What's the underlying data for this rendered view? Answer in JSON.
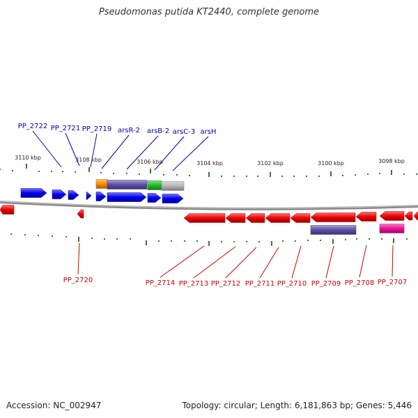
{
  "title": "Pseudomonas putida KT2440, complete genome",
  "footer": {
    "accession": "Accession: NC_002947",
    "summary": "Topology: circular; Length: 6,181,863 bp; Genes: 5,446"
  },
  "colors": {
    "forward": "#0000ee",
    "reverse": "#ee0000",
    "tick": "#2e7d32",
    "backbone": "#8a8a8a",
    "orange": "#ff8c00",
    "slate": "#5b4fa8",
    "green": "#22bb22",
    "gray": "#b8b8b8",
    "magenta": "#ee1199",
    "label_forward": "#0000aa",
    "label_reverse": "#cc0000"
  },
  "scale_labels": [
    "3110 kbp",
    "3108 kbp",
    "3106 kbp",
    "3104 kbp",
    "3102 kbp",
    "3100 kbp",
    "3098 kbp"
  ],
  "genes_top": [
    "PP_2722",
    "PP_2721",
    "PP_2719",
    "arsR-2",
    "arsB-2",
    "arsC-3",
    "arsH"
  ],
  "genes_bottom": [
    "PP_2720",
    "PP_2714",
    "PP_2713",
    "PP_2712",
    "PP_2711",
    "PP_2710",
    "PP_2709",
    "PP_2708",
    "PP_2707"
  ]
}
